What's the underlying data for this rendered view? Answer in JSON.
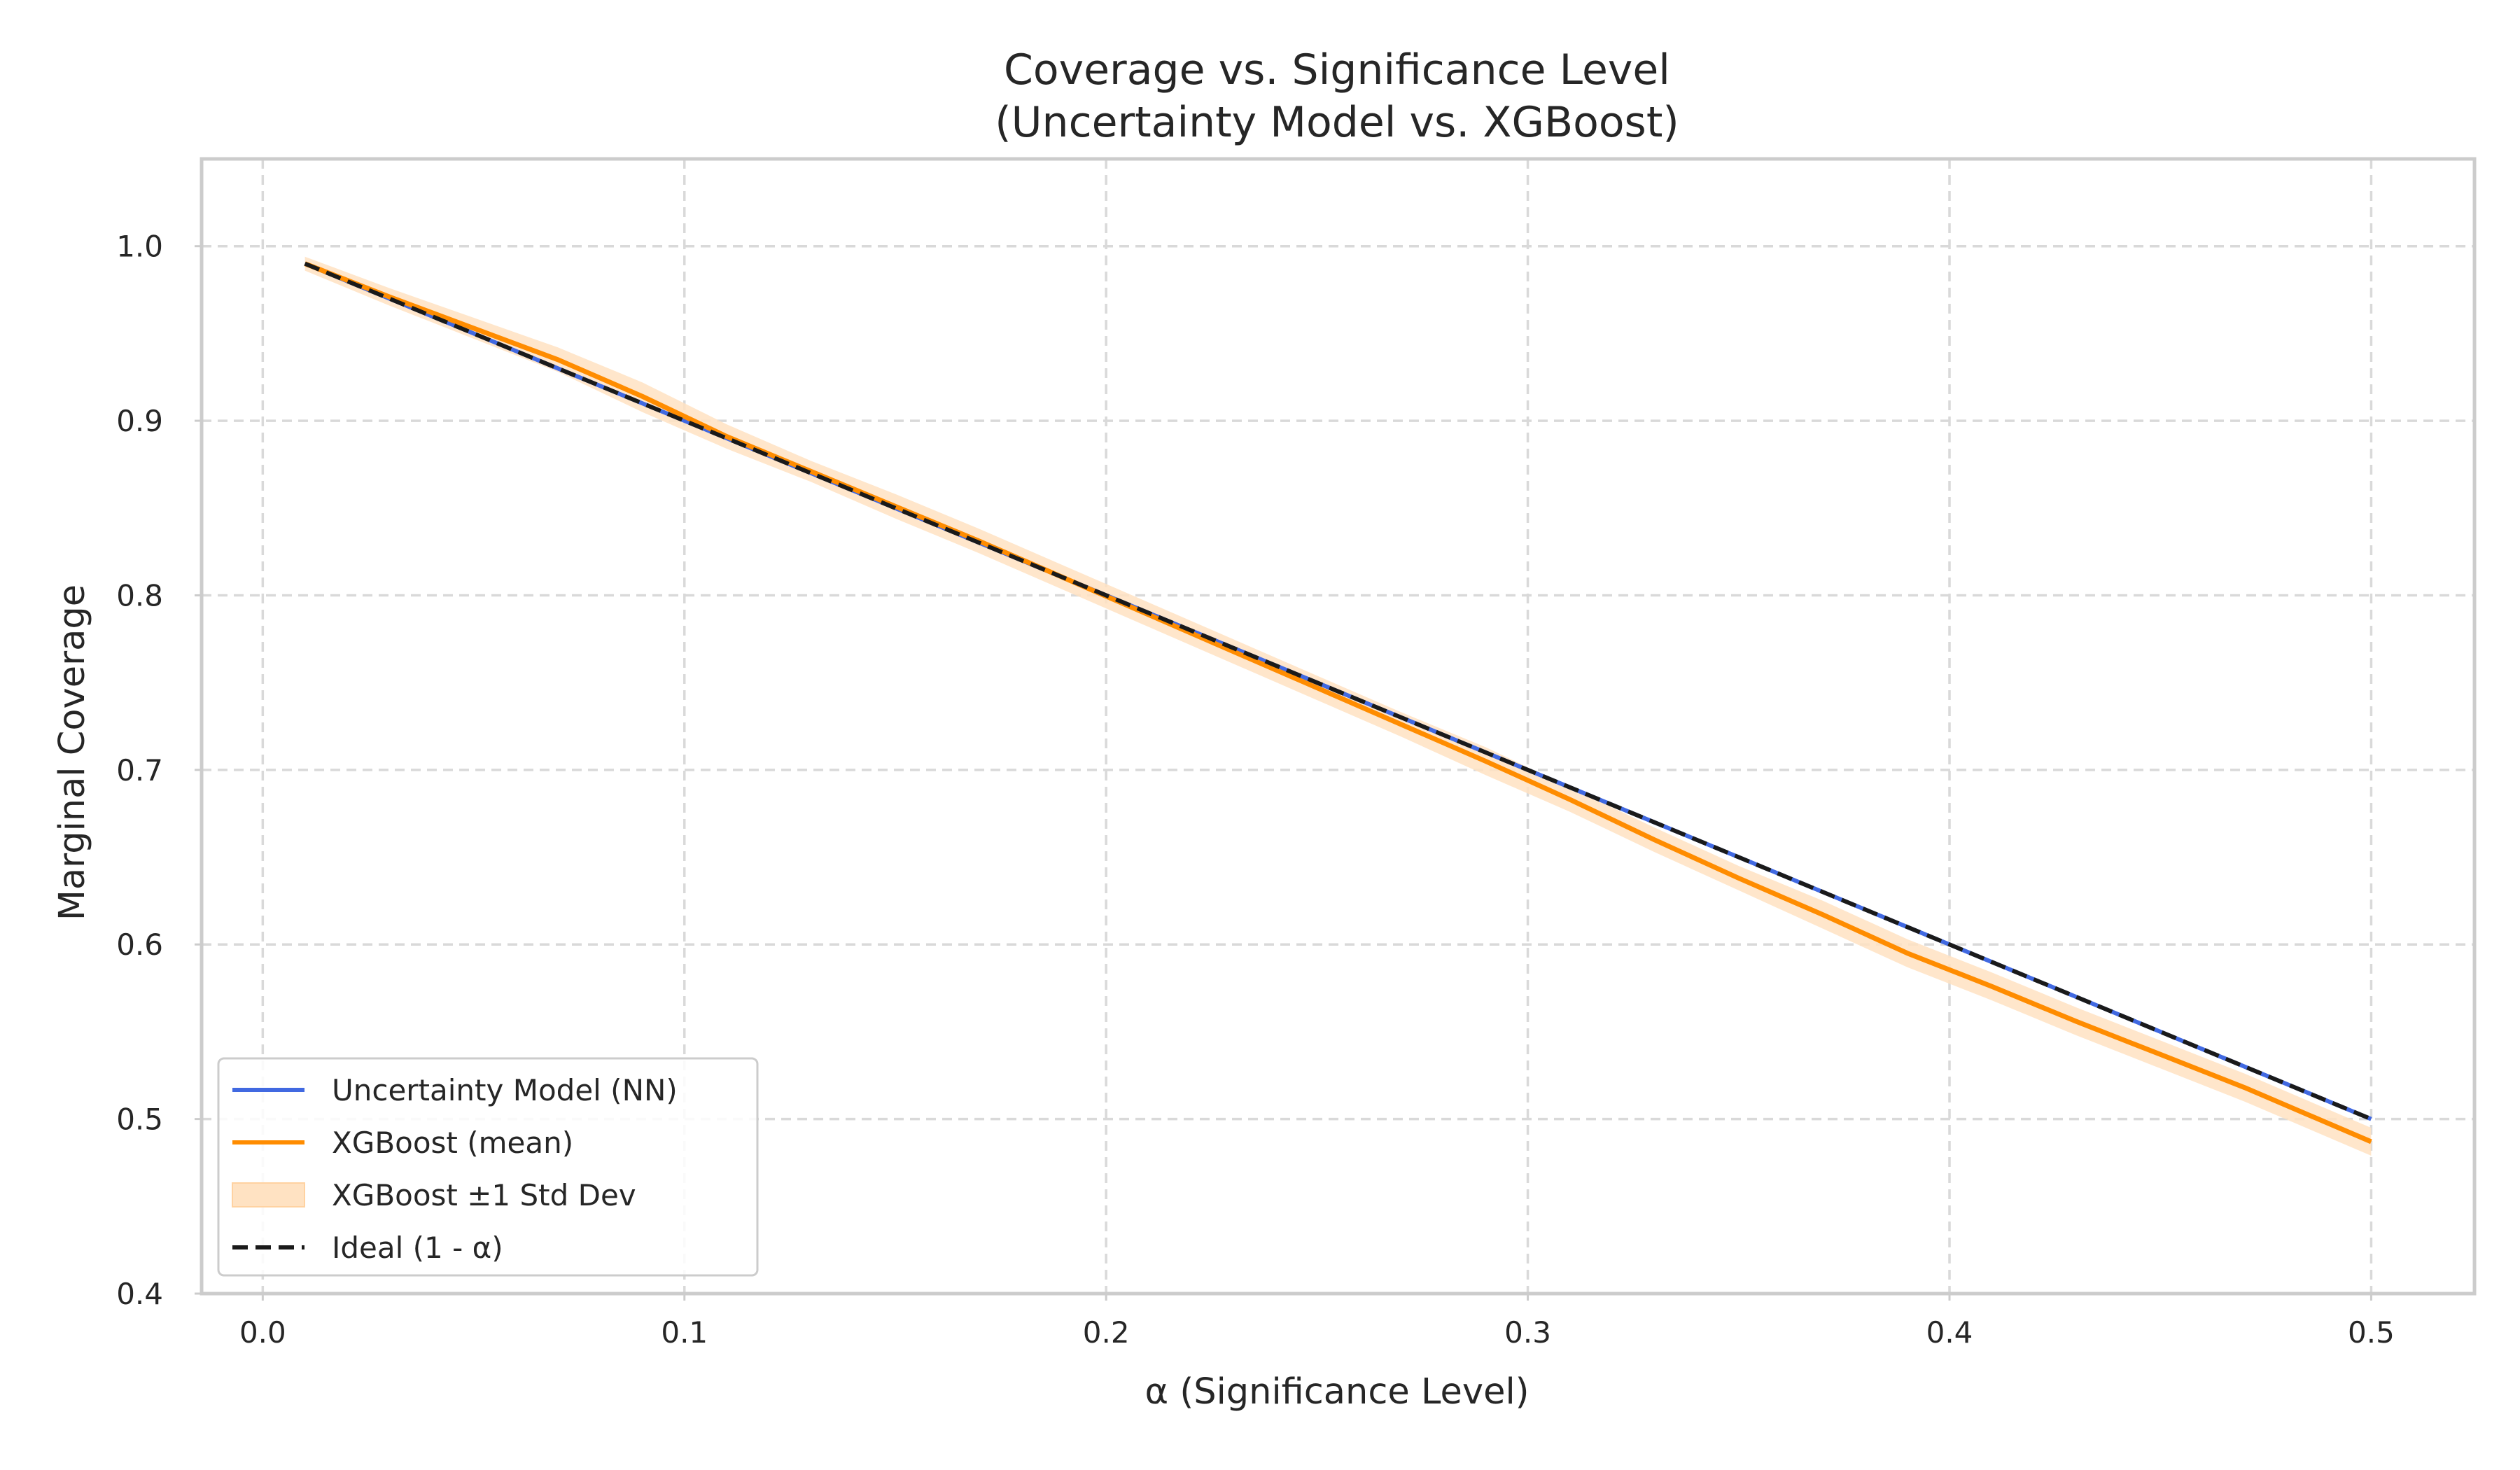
{
  "chart_data": {
    "type": "line",
    "title": "Coverage vs. Significance Level",
    "subtitle": "(Uncertainty Model vs. XGBoost)",
    "xlabel": "α (Significance Level)",
    "ylabel": "Marginal Coverage",
    "xlim": [
      -0.0145,
      0.5245
    ],
    "ylim": [
      0.4,
      1.05
    ],
    "xticks": [
      0.0,
      0.1,
      0.2,
      0.3,
      0.4,
      0.5
    ],
    "xtick_labels": [
      "0.0",
      "0.1",
      "0.2",
      "0.3",
      "0.4",
      "0.5"
    ],
    "yticks": [
      0.4,
      0.5,
      0.6,
      0.7,
      0.8,
      0.9,
      1.0
    ],
    "ytick_labels": [
      "0.4",
      "0.5",
      "0.6",
      "0.7",
      "0.8",
      "0.9",
      "1.0"
    ],
    "grid": true,
    "legend_position": "lower-left",
    "x": [
      0.01,
      0.03,
      0.05,
      0.07,
      0.09,
      0.11,
      0.13,
      0.15,
      0.17,
      0.19,
      0.21,
      0.23,
      0.25,
      0.27,
      0.29,
      0.31,
      0.33,
      0.35,
      0.37,
      0.39,
      0.41,
      0.43,
      0.45,
      0.47,
      0.5
    ],
    "series": [
      {
        "name": "Uncertainty Model (NN)",
        "kind": "line",
        "color": "#4169e1",
        "values": [
          0.99,
          0.97,
          0.95,
          0.93,
          0.91,
          0.89,
          0.87,
          0.85,
          0.83,
          0.81,
          0.79,
          0.77,
          0.75,
          0.73,
          0.71,
          0.69,
          0.67,
          0.65,
          0.63,
          0.61,
          0.59,
          0.57,
          0.55,
          0.53,
          0.5
        ]
      },
      {
        "name": "XGBoost (mean)",
        "kind": "line",
        "color": "#ff8c00",
        "values": [
          0.99,
          0.971,
          0.953,
          0.935,
          0.914,
          0.891,
          0.871,
          0.851,
          0.831,
          0.81,
          0.789,
          0.768,
          0.747,
          0.726,
          0.705,
          0.683,
          0.66,
          0.638,
          0.617,
          0.595,
          0.576,
          0.556,
          0.537,
          0.518,
          0.487
        ]
      },
      {
        "name": "XGBoost ±1 Std Dev",
        "kind": "band",
        "color": "#ffe2c2",
        "lower": [
          0.986,
          0.966,
          0.947,
          0.928,
          0.905,
          0.884,
          0.865,
          0.844,
          0.824,
          0.803,
          0.782,
          0.761,
          0.74,
          0.719,
          0.697,
          0.676,
          0.653,
          0.631,
          0.609,
          0.587,
          0.568,
          0.548,
          0.529,
          0.51,
          0.479
        ],
        "upper": [
          0.994,
          0.976,
          0.959,
          0.942,
          0.922,
          0.898,
          0.877,
          0.858,
          0.838,
          0.817,
          0.796,
          0.775,
          0.754,
          0.733,
          0.713,
          0.69,
          0.667,
          0.645,
          0.625,
          0.603,
          0.584,
          0.564,
          0.545,
          0.526,
          0.495
        ]
      },
      {
        "name": "Ideal (1 - α)",
        "kind": "dashed",
        "color": "#1a1a1a",
        "values": [
          0.99,
          0.97,
          0.95,
          0.93,
          0.91,
          0.89,
          0.87,
          0.85,
          0.83,
          0.81,
          0.79,
          0.77,
          0.75,
          0.73,
          0.71,
          0.69,
          0.67,
          0.65,
          0.63,
          0.61,
          0.59,
          0.57,
          0.55,
          0.53,
          0.5
        ]
      }
    ]
  }
}
